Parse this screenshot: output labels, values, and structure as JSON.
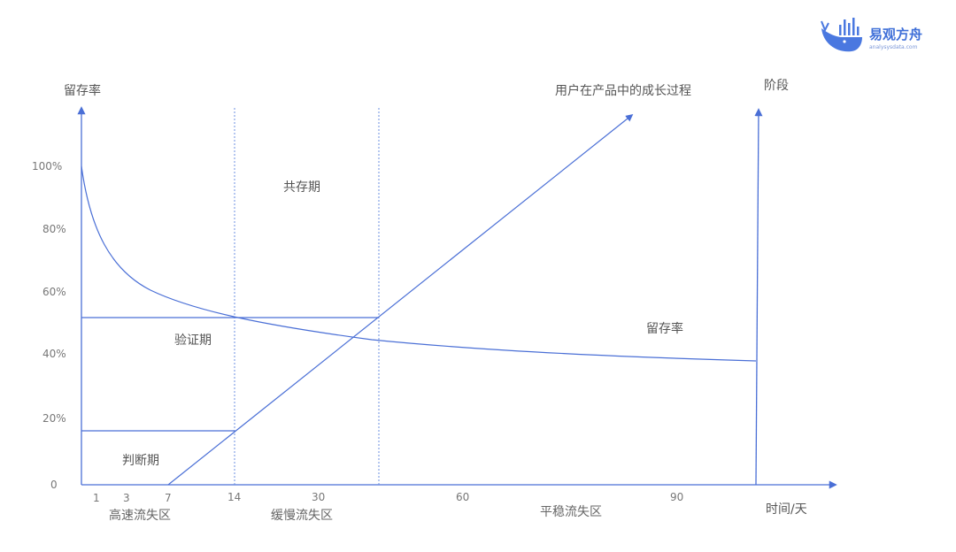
{
  "brand": {
    "name_cn": "易观方舟",
    "name_en": "analysysdata.com",
    "logo_icon": "whale-bars-icon",
    "color": "#3f6fd8"
  },
  "axes": {
    "y_left_title": "留存率",
    "y_right_title": "阶段",
    "x_title": "时间/天",
    "y_ticks": [
      "0",
      "20%",
      "40%",
      "60%",
      "80%",
      "100%"
    ],
    "x_ticks": [
      "1",
      "3",
      "7",
      "14",
      "30",
      "60",
      "90"
    ]
  },
  "curves": {
    "growth_label": "用户在产品中的成长过程",
    "retention_label": "留存率"
  },
  "phases": {
    "judge": "判断期",
    "verify": "验证期",
    "coexist": "共存期"
  },
  "zones": {
    "fast": "高速流失区",
    "slow": "缓慢流失区",
    "stable": "平稳流失区"
  },
  "colors": {
    "line": "#4a6fd6",
    "guide": "#6b8fe0",
    "text": "#666666"
  }
}
